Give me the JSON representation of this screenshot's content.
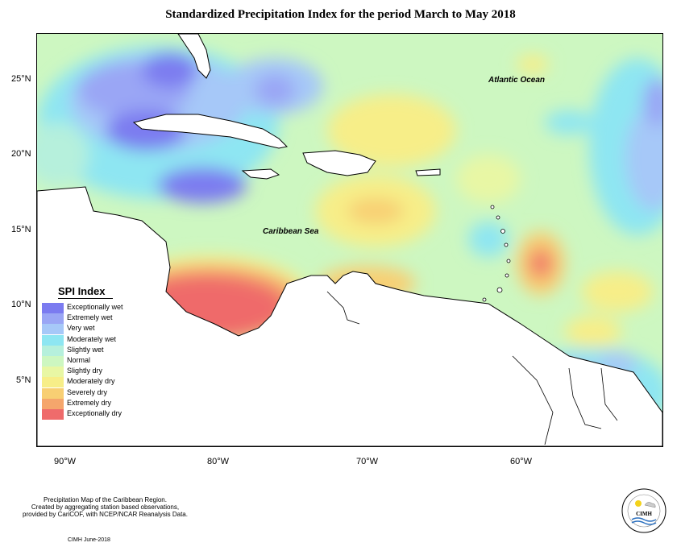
{
  "title": "Standardized Precipitation Index for the period March to May 2018",
  "labels": {
    "atlantic": "Atlantic Ocean",
    "caribbean": "Caribbean Sea"
  },
  "axes": {
    "lat_ticks": [
      "25°N",
      "20°N",
      "15°N",
      "10°N",
      "5°N"
    ],
    "lon_ticks": [
      "90°W",
      "80°W",
      "70°W",
      "60°W"
    ]
  },
  "legend": {
    "title": "SPI Index",
    "items": [
      {
        "label": "Exceptionally wet",
        "color": "#7b7bf0"
      },
      {
        "label": "Extremely wet",
        "color": "#9aa6f5"
      },
      {
        "label": "Very wet",
        "color": "#a6c8f8"
      },
      {
        "label": "Moderately wet",
        "color": "#8ee6f2"
      },
      {
        "label": "Slightly wet",
        "color": "#b6f0dc"
      },
      {
        "label": "Normal",
        "color": "#cdf7c1"
      },
      {
        "label": "Slightly dry",
        "color": "#e8f7a4"
      },
      {
        "label": "Moderately dry",
        "color": "#f7ee88"
      },
      {
        "label": "Severely dry",
        "color": "#f8cf73"
      },
      {
        "label": "Extremely dry",
        "color": "#f5a66c"
      },
      {
        "label": "Exceptionally dry",
        "color": "#ef6b6b"
      }
    ]
  },
  "credit": {
    "line1": "Precipitation Map of the Caribbean Region.",
    "line2": "Created by aggregating station based observations,",
    "line3": "provided by CariCOF, with NCEP/NCAR Reanalysis Data."
  },
  "date_note": "CIMH June-2018",
  "logo": {
    "text": "CIMH"
  }
}
